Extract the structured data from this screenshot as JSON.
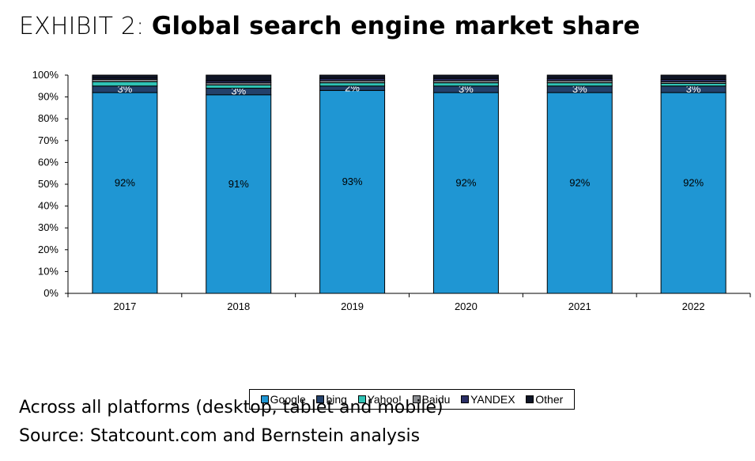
{
  "header": {
    "prefix": "EXHIBIT 2:",
    "title": "Global search engine market share"
  },
  "footnotes": {
    "platforms": "Across all platforms (desktop, tablet and mobile)",
    "source": "Source: Statcount.com and Bernstein analysis"
  },
  "chart_data": {
    "type": "bar",
    "stacked": true,
    "title": "",
    "xlabel": "",
    "ylabel": "",
    "ylim": [
      0,
      100
    ],
    "yticks": [
      "0%",
      "10%",
      "20%",
      "30%",
      "40%",
      "50%",
      "60%",
      "70%",
      "80%",
      "90%",
      "100%"
    ],
    "categories": [
      "2017",
      "2018",
      "2019",
      "2020",
      "2021",
      "2022"
    ],
    "series": [
      {
        "name": "Google",
        "color": "#1f96d3",
        "values": [
          92,
          91,
          93,
          92,
          92,
          92
        ],
        "labels": [
          "92%",
          "91%",
          "93%",
          "92%",
          "92%",
          "92%"
        ]
      },
      {
        "name": "bing",
        "color": "#23416b",
        "values": [
          3,
          3,
          2,
          3,
          3,
          3
        ],
        "labels": [
          "3%",
          "3%",
          "2%",
          "3%",
          "3%",
          "3%"
        ]
      },
      {
        "name": "Yahoo!",
        "color": "#2fc3b5",
        "values": [
          2,
          1.5,
          1.5,
          1.5,
          1.5,
          1.2
        ]
      },
      {
        "name": "Baidu",
        "color": "#8a8d91",
        "values": [
          1,
          1,
          1,
          1,
          1,
          0.8
        ]
      },
      {
        "name": "YANDEX",
        "color": "#2b2f66",
        "values": [
          0.6,
          0.9,
          1,
          1,
          1,
          1
        ]
      },
      {
        "name": "Other",
        "color": "#0f1526",
        "values": [
          1.4,
          2.6,
          1.5,
          1.5,
          1.5,
          2
        ]
      }
    ],
    "grid": false,
    "legend_position": "bottom"
  }
}
